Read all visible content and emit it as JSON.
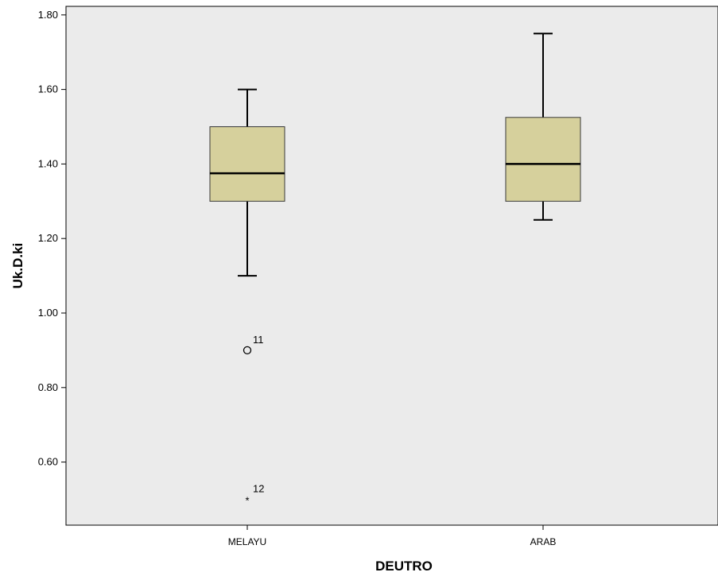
{
  "chart_data": {
    "type": "boxplot",
    "xlabel": "DEUTRO",
    "ylabel": "Uk.D.ki",
    "ylim": [
      0.45,
      1.82
    ],
    "yticks": [
      0.6,
      0.8,
      1.0,
      1.2,
      1.4,
      1.6,
      1.8
    ],
    "ytick_labels": [
      "0.60",
      "0.80",
      "1.00",
      "1.20",
      "1.40",
      "1.60",
      "1.80"
    ],
    "grid": false,
    "colors": {
      "plot_background": "#ebebeb",
      "box_fill": "#d6d09c",
      "box_stroke": "#3a3a3a",
      "line": "#000000"
    },
    "categories": [
      "MELAYU",
      "ARAB"
    ],
    "boxes": [
      {
        "category": "MELAYU",
        "whisker_low": 1.1,
        "q1": 1.3,
        "median": 1.375,
        "q3": 1.5,
        "whisker_high": 1.6,
        "outliers": [
          {
            "value": 0.9,
            "label": "11",
            "marker": "circle"
          },
          {
            "value": 0.5,
            "label": "12",
            "marker": "star"
          }
        ]
      },
      {
        "category": "ARAB",
        "whisker_low": 1.25,
        "q1": 1.3,
        "median": 1.4,
        "q3": 1.525,
        "whisker_high": 1.75,
        "outliers": []
      }
    ]
  }
}
